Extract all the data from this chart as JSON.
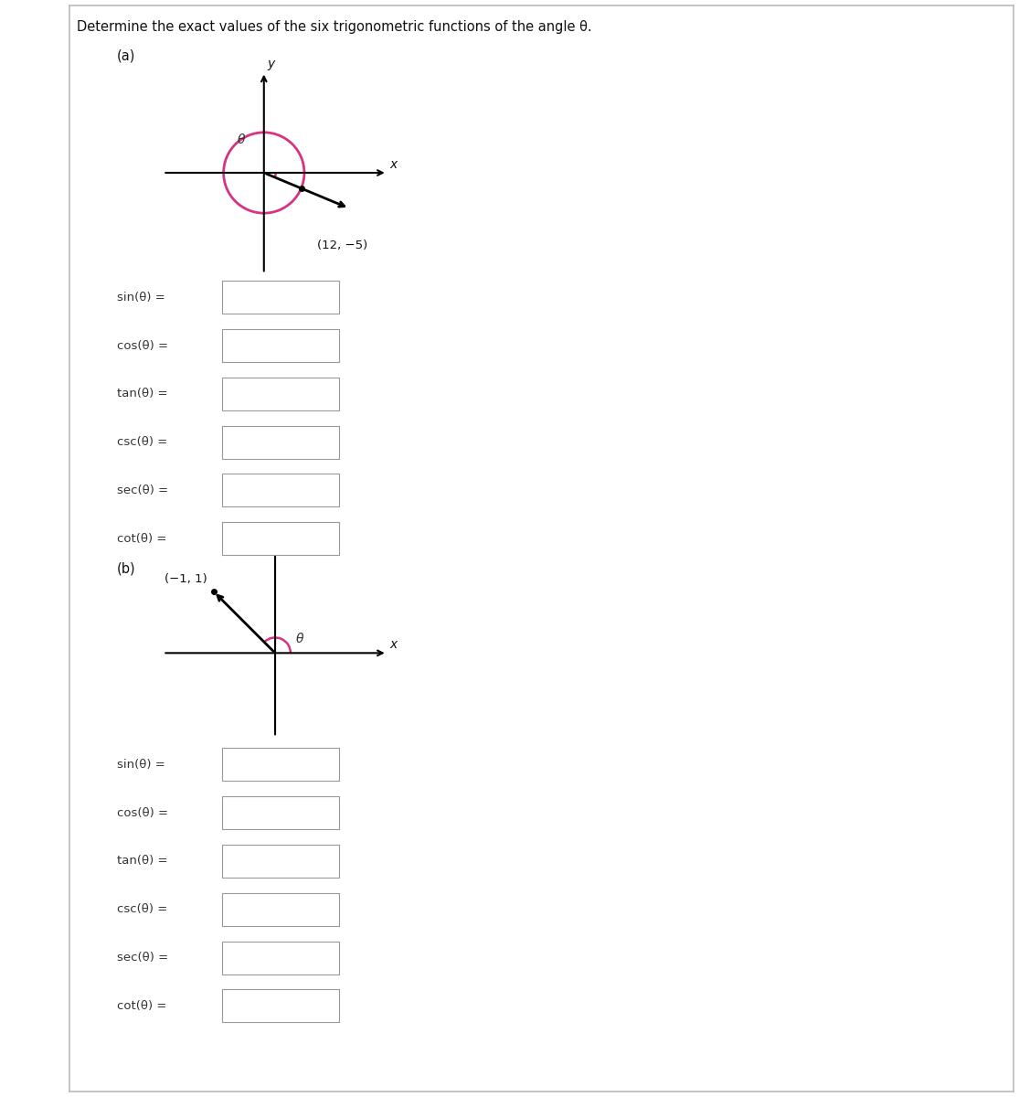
{
  "title": "Determine the exact values of the six trigonometric functions of the angle θ.",
  "title_fontsize": 10.5,
  "bg_color": "#ffffff",
  "label_a": "(a)",
  "label_b": "(b)",
  "point_a_label": "(12, −5)",
  "point_b_label": "(−1, 1)",
  "trig_funcs": [
    "sin(θ) =",
    "cos(θ) =",
    "tan(θ) =",
    "csc(θ) =",
    "sec(θ) =",
    "cot(θ) ="
  ],
  "angle_arc_color": "#d63384",
  "circle_color": "#d63384",
  "axis_label_fontsize": 10,
  "func_label_fontsize": 9.5,
  "theta_fontsize": 10
}
